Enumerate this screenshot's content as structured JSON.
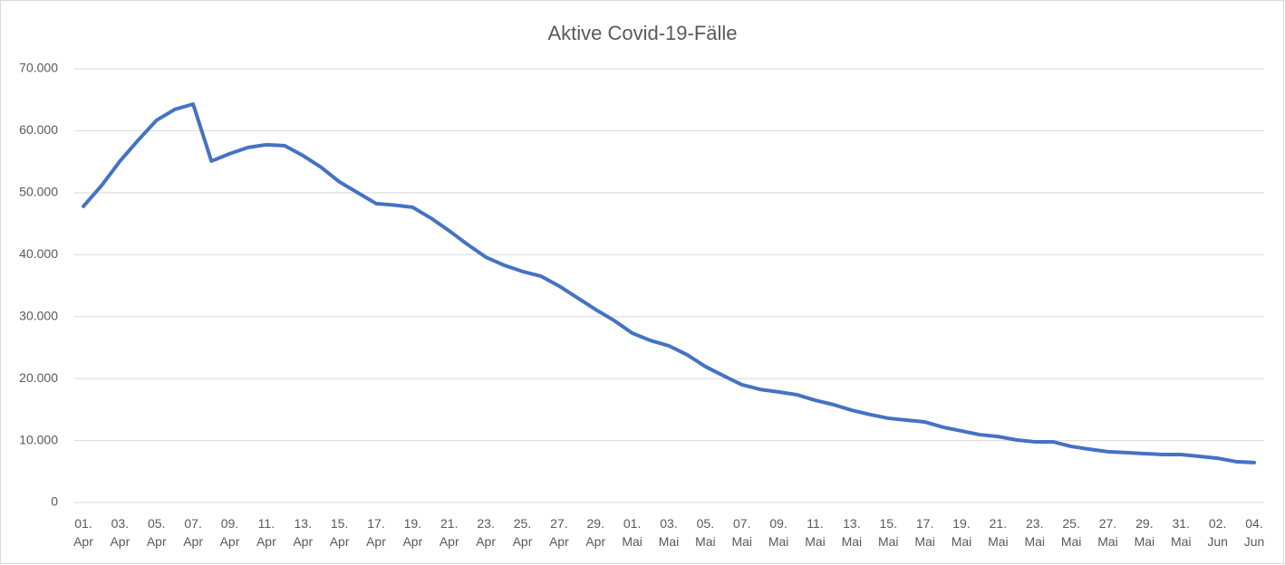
{
  "chart_data": {
    "type": "line",
    "title": "Aktive Covid-19-Fälle",
    "categories": [
      "01. Apr",
      null,
      "03. Apr",
      null,
      "05. Apr",
      null,
      "07. Apr",
      null,
      "09. Apr",
      null,
      "11. Apr",
      null,
      "13. Apr",
      null,
      "15. Apr",
      null,
      "17. Apr",
      null,
      "19. Apr",
      null,
      "21. Apr",
      null,
      "23. Apr",
      null,
      "25. Apr",
      null,
      "27. Apr",
      null,
      "29. Apr",
      null,
      "01. Mai",
      null,
      "03. Mai",
      null,
      "05. Mai",
      null,
      "07. Mai",
      null,
      "09. Mai",
      null,
      "11. Mai",
      null,
      "13. Mai",
      null,
      "15. Mai",
      null,
      "17. Mai",
      null,
      "19. Mai",
      null,
      "21. Mai",
      null,
      "23. Mai",
      null,
      "25. Mai",
      null,
      "27. Mai",
      null,
      "29. Mai",
      null,
      "31. Mai",
      null,
      "02. Jun",
      null,
      "04. Jun"
    ],
    "series": [
      {
        "color": "#4472c4",
        "values": [
          47800,
          51170,
          55100,
          58500,
          61700,
          63450,
          64300,
          55100,
          56300,
          57300,
          57750,
          57600,
          56000,
          54100,
          51750,
          50000,
          48250,
          48000,
          47650,
          45900,
          43850,
          41650,
          39600,
          38300,
          37300,
          36550,
          34950,
          33050,
          31150,
          29400,
          27350,
          26150,
          25300,
          23850,
          21950,
          20450,
          19000,
          18250,
          17850,
          17400,
          16500,
          15800,
          14900,
          14200,
          13600,
          13300,
          13000,
          12150,
          11550,
          10950,
          10650,
          10100,
          9800,
          9800,
          9050,
          8600,
          8200,
          8050,
          7900,
          7750,
          7750,
          7450,
          7150,
          6600,
          6450
        ]
      }
    ],
    "ylim": [
      0,
      70000
    ],
    "yticks": [
      0,
      {
        "value": 10000,
        "label": "10.000"
      },
      {
        "value": 20000,
        "label": "20.000"
      },
      {
        "value": 30000,
        "label": "30.000"
      },
      {
        "value": 40000,
        "label": "40.000"
      },
      {
        "value": 50000,
        "label": "50.000"
      },
      {
        "value": 60000,
        "label": "60.000"
      },
      {
        "value": 70000,
        "label": "70.000"
      }
    ],
    "grid": true
  }
}
